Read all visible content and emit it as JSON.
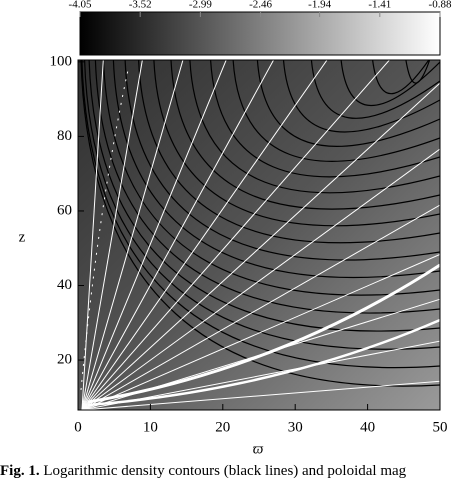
{
  "chart_data": {
    "type": "contour",
    "xlabel": "ϖ",
    "ylabel": "z",
    "xlim": [
      0,
      50
    ],
    "xticks": [
      0,
      10,
      20,
      30,
      40,
      50
    ],
    "ylim": [
      6.6,
      100.5
    ],
    "yticks": [
      20,
      40,
      60,
      80,
      100
    ],
    "colorbar": {
      "lim": [
        -4.05,
        -0.88
      ],
      "ticks": [
        -4.05,
        -3.52,
        -2.99,
        -2.46,
        -1.94,
        -1.41,
        -0.88
      ],
      "colors": [
        "#000000",
        "#ffffff"
      ]
    },
    "caption_label": "Fig. 1.",
    "caption_text": "Logarithmic density contours (black lines) and poloidal mag"
  }
}
